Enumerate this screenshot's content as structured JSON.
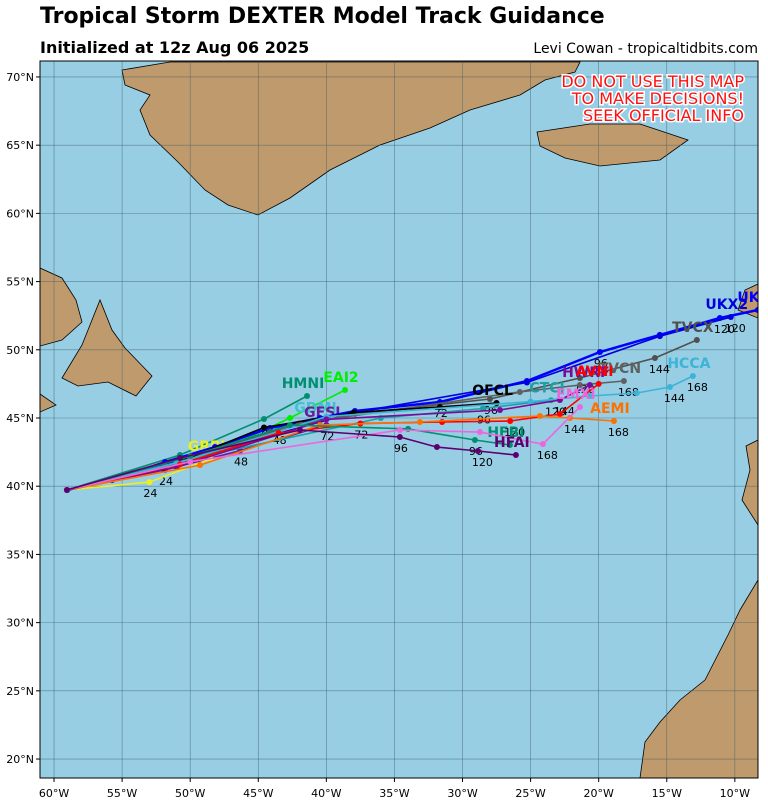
{
  "header": {
    "title": "Tropical Storm DEXTER Model Track Guidance",
    "subtitle": "Initialized at 12z Aug 06 2025",
    "credit": "Levi Cowan - tropicaltidbits.com"
  },
  "warning": [
    "DO NOT USE THIS MAP",
    "TO MAKE DECISIONS!",
    "SEEK OFFICIAL INFO"
  ],
  "map": {
    "lonlim": [
      -61.03,
      -8.3
    ],
    "latlim": [
      18.61,
      71.17
    ],
    "grid": true,
    "lonticks": [
      {
        "value": -60,
        "label": "60°W"
      },
      {
        "value": -55,
        "label": "55°W"
      },
      {
        "value": -50,
        "label": "50°W"
      },
      {
        "value": -45,
        "label": "45°W"
      },
      {
        "value": -40,
        "label": "40°W"
      },
      {
        "value": -35,
        "label": "35°W"
      },
      {
        "value": -30,
        "label": "30°W"
      },
      {
        "value": -25,
        "label": "25°W"
      },
      {
        "value": -20,
        "label": "20°W"
      },
      {
        "value": -15,
        "label": "15°W"
      },
      {
        "value": -10,
        "label": "10°W"
      }
    ],
    "latticks": [
      {
        "value": 20,
        "label": "20°N"
      },
      {
        "value": 25,
        "label": "25°N"
      },
      {
        "value": 30,
        "label": "30°N"
      },
      {
        "value": 35,
        "label": "35°N"
      },
      {
        "value": 40,
        "label": "40°N"
      },
      {
        "value": 45,
        "label": "45°N"
      },
      {
        "value": 50,
        "label": "50°N"
      },
      {
        "value": 55,
        "label": "55°N"
      },
      {
        "value": 60,
        "label": "60°N"
      },
      {
        "value": 65,
        "label": "65°N"
      },
      {
        "value": 70,
        "label": "70°N"
      }
    ]
  },
  "tracks": [
    {
      "name": "HMNI",
      "color": "#008f6f",
      "points": [
        {
          "lon": -59.05,
          "lat": 39.72
        },
        {
          "lon": -50.75,
          "lat": 42.29
        },
        {
          "lon": -44.58,
          "lat": 44.93,
          "hour": 48
        },
        {
          "lon": -41.42,
          "lat": 46.61
        }
      ]
    },
    {
      "name": "EAI2",
      "color": "#00ee00",
      "points": [
        {
          "lon": -59.05,
          "lat": 39.72
        },
        {
          "lon": -49.28,
          "lat": 41.92
        },
        {
          "lon": -42.67,
          "lat": 45.0
        },
        {
          "lon": -38.63,
          "lat": 47.05
        }
      ]
    },
    {
      "name": "GDMI",
      "color": "#40c0d0",
      "points": [
        {
          "lon": -59.05,
          "lat": 39.72
        },
        {
          "lon": -50.0,
          "lat": 42.0
        },
        {
          "lon": -43.5,
          "lat": 44.2,
          "hour": 48
        },
        {
          "lon": -40.5,
          "lat": 44.8
        }
      ]
    },
    {
      "name": "GFSI",
      "color": "#6a1b9a",
      "points": [
        {
          "lon": -59.05,
          "lat": 39.72
        },
        {
          "lon": -51.85,
          "lat": 41.2,
          "hour": 24
        },
        {
          "lon": -46.34,
          "lat": 42.6,
          "hour": 48
        },
        {
          "lon": -40.0,
          "lat": 44.5,
          "hour": 72
        }
      ]
    },
    {
      "name": "GRPI",
      "color": "#eeee20",
      "points": [
        {
          "lon": -59.05,
          "lat": 39.72
        },
        {
          "lon": -53.0,
          "lat": 40.3,
          "hour": 24
        },
        {
          "lon": -48.5,
          "lat": 42.0
        }
      ]
    },
    {
      "name": "UKX",
      "color": "#0000ff",
      "points": [
        {
          "lon": -59.05,
          "lat": 39.72
        },
        {
          "lon": -55.74,
          "lat": 40.45
        },
        {
          "lon": -51.85,
          "lat": 41.77
        },
        {
          "lon": -48.18,
          "lat": 42.87
        },
        {
          "lon": -44.14,
          "lat": 44.27
        },
        {
          "lon": -40.47,
          "lat": 45.0
        },
        {
          "lon": -37.9,
          "lat": 45.51
        },
        {
          "lon": -31.66,
          "lat": 46.17,
          "hour": 72
        },
        {
          "lon": -25.27,
          "lat": 47.71
        },
        {
          "lon": -19.91,
          "lat": 49.84,
          "hour": 96
        },
        {
          "lon": -15.51,
          "lat": 51.09
        },
        {
          "lon": -11.1,
          "lat": 52.33,
          "hour": 120
        },
        {
          "lon": -8.31,
          "lat": 52.92
        }
      ]
    },
    {
      "name": "UKX2",
      "color": "#0000dd",
      "points": [
        {
          "lon": -59.05,
          "lat": 39.72
        },
        {
          "lon": -51.85,
          "lat": 41.6
        },
        {
          "lon": -37.9,
          "lat": 45.4
        },
        {
          "lon": -25.27,
          "lat": 47.6
        },
        {
          "lon": -15.51,
          "lat": 51.0
        },
        {
          "lon": -10.3,
          "lat": 52.4,
          "hour": 120
        }
      ]
    },
    {
      "name": "TVCX",
      "color": "#505050",
      "points": [
        {
          "lon": -59.05,
          "lat": 39.72
        },
        {
          "lon": -51.85,
          "lat": 41.5
        },
        {
          "lon": -44.14,
          "lat": 44.0
        },
        {
          "lon": -37.9,
          "lat": 45.3
        },
        {
          "lon": -27.99,
          "lat": 46.39,
          "hour": 96
        },
        {
          "lon": -21.38,
          "lat": 47.93,
          "hour": 120
        },
        {
          "lon": -15.87,
          "lat": 49.4,
          "hour": 144
        },
        {
          "lon": -12.79,
          "lat": 50.72
        }
      ]
    },
    {
      "name": "TVCN",
      "color": "#606060",
      "points": [
        {
          "lon": -59.05,
          "lat": 39.72
        },
        {
          "lon": -51.0,
          "lat": 41.6
        },
        {
          "lon": -42.0,
          "lat": 44.6
        },
        {
          "lon": -25.79,
          "lat": 46.91
        },
        {
          "lon": -21.38,
          "lat": 47.42
        },
        {
          "lon": -18.15,
          "lat": 47.71,
          "hour": 168
        }
      ]
    },
    {
      "name": "OFCL",
      "color": "#000000",
      "points": [
        {
          "lon": -59.05,
          "lat": 39.72
        },
        {
          "lon": -52.0,
          "lat": 41.3
        },
        {
          "lon": -44.58,
          "lat": 44.3
        },
        {
          "lon": -38.0,
          "lat": 45.4
        },
        {
          "lon": -31.66,
          "lat": 45.81
        },
        {
          "lon": -27.5,
          "lat": 46.1
        }
      ]
    },
    {
      "name": "CTCI",
      "color": "#1f9fa0",
      "points": [
        {
          "lon": -59.05,
          "lat": 39.72
        },
        {
          "lon": -50.0,
          "lat": 42.0
        },
        {
          "lon": -36.0,
          "lat": 45.0
        },
        {
          "lon": -28.5,
          "lat": 45.7,
          "hour": 96
        },
        {
          "lon": -23.5,
          "lat": 46.3,
          "hour": 120
        }
      ]
    },
    {
      "name": "HCCA",
      "color": "#3cb4d8",
      "points": [
        {
          "lon": -59.05,
          "lat": 39.72
        },
        {
          "lon": -51.0,
          "lat": 41.7
        },
        {
          "lon": -40.0,
          "lat": 45.1
        },
        {
          "lon": -25.0,
          "lat": 46.2
        },
        {
          "lon": -20.65,
          "lat": 46.61
        },
        {
          "lon": -17.2,
          "lat": 46.83
        },
        {
          "lon": -14.77,
          "lat": 47.27,
          "hour": 144
        },
        {
          "lon": -13.08,
          "lat": 48.08,
          "hour": 168
        }
      ]
    },
    {
      "name": "HWRF",
      "color": "#7a0a9a",
      "points": [
        {
          "lon": -59.05,
          "lat": 39.72
        },
        {
          "lon": -51.0,
          "lat": 41.4
        },
        {
          "lon": -40.0,
          "lat": 44.9
        },
        {
          "lon": -27.25,
          "lat": 45.59
        },
        {
          "lon": -22.85,
          "lat": 46.32,
          "hour": 144
        },
        {
          "lon": -20.65,
          "lat": 47.42
        }
      ]
    },
    {
      "name": "AVNI",
      "color": "#ff0000",
      "points": [
        {
          "lon": -59.05,
          "lat": 39.72
        },
        {
          "lon": -50.75,
          "lat": 41.6
        },
        {
          "lon": -43.5,
          "lat": 43.9
        },
        {
          "lon": -37.5,
          "lat": 44.6,
          "hour": 72
        },
        {
          "lon": -31.5,
          "lat": 44.71
        },
        {
          "lon": -26.5,
          "lat": 44.78,
          "hour": 120
        },
        {
          "lon": -22.85,
          "lat": 45.29
        },
        {
          "lon": -20.0,
          "lat": 47.5
        }
      ]
    },
    {
      "name": "AEMI",
      "color": "#ff7000",
      "points": [
        {
          "lon": -59.05,
          "lat": 39.72
        },
        {
          "lon": -49.28,
          "lat": 41.55
        },
        {
          "lon": -40.47,
          "lat": 44.49
        },
        {
          "lon": -33.13,
          "lat": 44.71
        },
        {
          "lon": -24.32,
          "lat": 45.15
        },
        {
          "lon": -22.11,
          "lat": 45.0,
          "hour": 144
        },
        {
          "lon": -18.88,
          "lat": 44.78,
          "hour": 168
        }
      ]
    },
    {
      "name": "HFBI",
      "color": "#008f6f",
      "points": [
        {
          "lon": -59.05,
          "lat": 39.72
        },
        {
          "lon": -50.0,
          "lat": 42.2
        },
        {
          "lon": -42.67,
          "lat": 44.49
        },
        {
          "lon": -34.0,
          "lat": 44.2
        },
        {
          "lon": -29.09,
          "lat": 43.39,
          "hour": 96
        },
        {
          "lon": -26.52,
          "lat": 43.02
        }
      ]
    },
    {
      "name": "EMXI",
      "color": "#ee66dd",
      "points": [
        {
          "lon": -59.05,
          "lat": 39.72
        },
        {
          "lon": -50.0,
          "lat": 41.8
        },
        {
          "lon": -34.6,
          "lat": 44.12
        },
        {
          "lon": -28.72,
          "lat": 43.97
        },
        {
          "lon": -24.1,
          "lat": 43.09,
          "hour": 168
        },
        {
          "lon": -21.38,
          "lat": 45.81
        }
      ]
    },
    {
      "name": "HFAI",
      "color": "#5c0070",
      "points": [
        {
          "lon": -59.05,
          "lat": 39.72
        },
        {
          "lon": -50.75,
          "lat": 42.07
        },
        {
          "lon": -41.94,
          "lat": 44.12
        },
        {
          "lon": -34.6,
          "lat": 43.61,
          "hour": 96
        },
        {
          "lon": -31.88,
          "lat": 42.87
        },
        {
          "lon": -28.87,
          "lat": 42.58,
          "hour": 120
        },
        {
          "lon": -26.08,
          "lat": 42.29
        }
      ]
    }
  ]
}
